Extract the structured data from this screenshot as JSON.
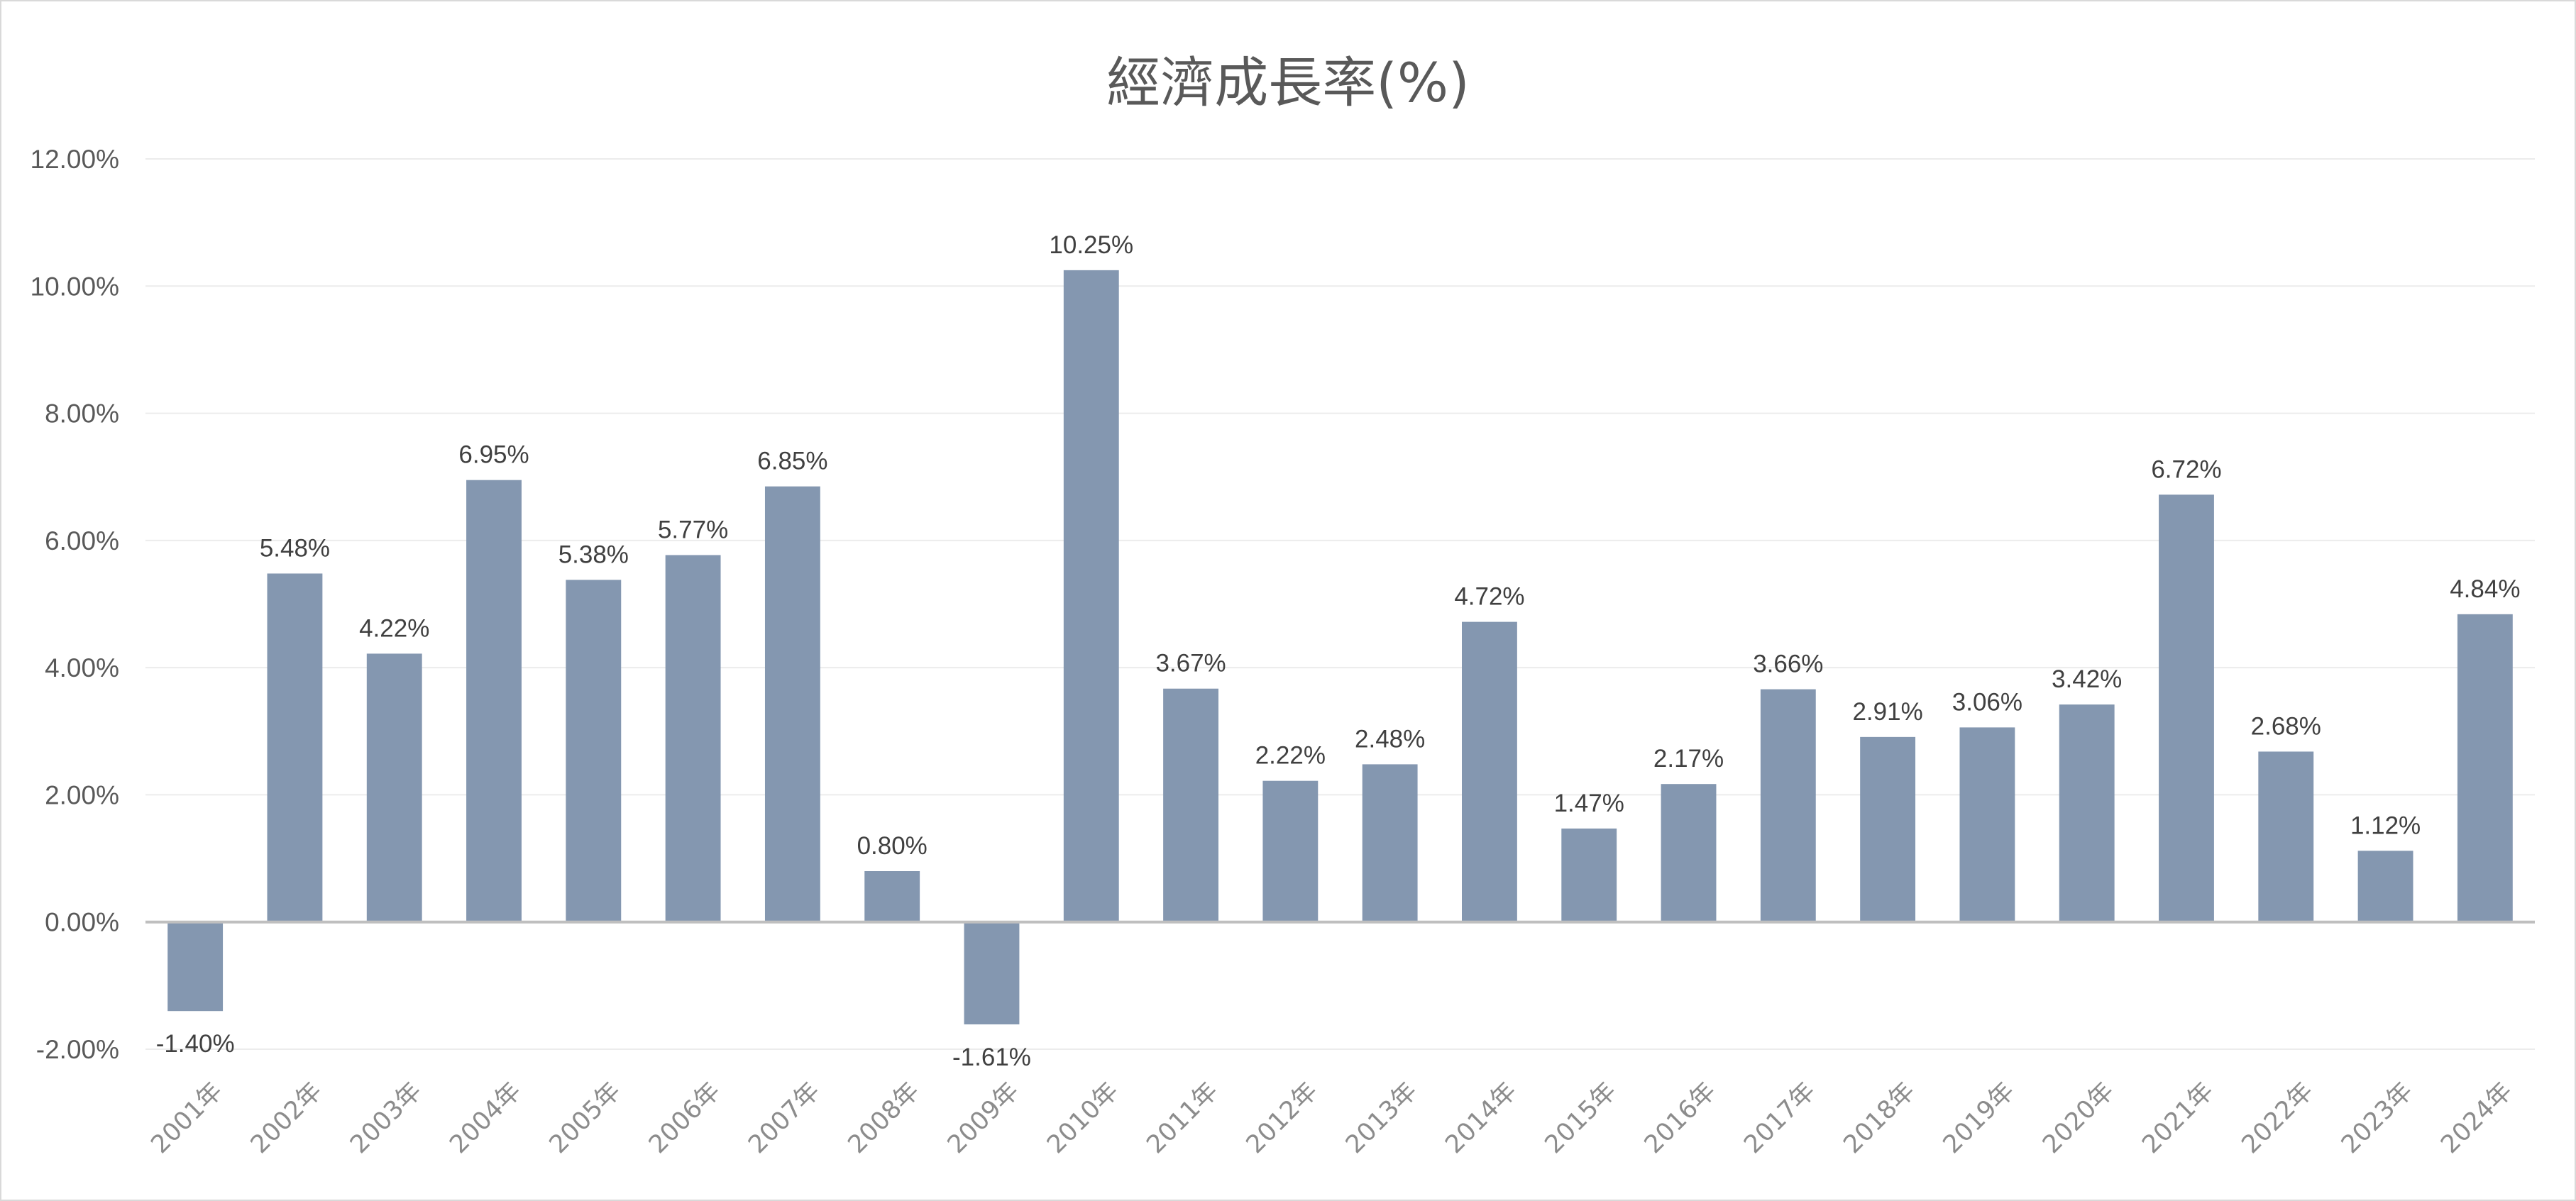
{
  "chart_data": {
    "type": "bar",
    "title": "經濟成長率(%)",
    "categories": [
      "2001年",
      "2002年",
      "2003年",
      "2004年",
      "2005年",
      "2006年",
      "2007年",
      "2008年",
      "2009年",
      "2010年",
      "2011年",
      "2012年",
      "2013年",
      "2014年",
      "2015年",
      "2016年",
      "2017年",
      "2018年",
      "2019年",
      "2020年",
      "2021年",
      "2022年",
      "2023年",
      "2024年"
    ],
    "values": [
      -1.4,
      5.48,
      4.22,
      6.95,
      5.38,
      5.77,
      6.85,
      0.8,
      -1.61,
      10.25,
      3.67,
      2.22,
      2.48,
      4.72,
      1.47,
      2.17,
      3.66,
      2.91,
      3.06,
      3.42,
      6.72,
      2.68,
      1.12,
      4.84
    ],
    "data_labels": [
      "-1.40%",
      "5.48%",
      "4.22%",
      "6.95%",
      "5.38%",
      "5.77%",
      "6.85%",
      "0.80%",
      "-1.61%",
      "10.25%",
      "3.67%",
      "2.22%",
      "2.48%",
      "4.72%",
      "1.47%",
      "2.17%",
      "3.66%",
      "2.91%",
      "3.06%",
      "3.42%",
      "6.72%",
      "2.68%",
      "1.12%",
      "4.84%"
    ],
    "y_ticks": [
      "-2.00%",
      "0.00%",
      "2.00%",
      "4.00%",
      "6.00%",
      "8.00%",
      "10.00%",
      "12.00%"
    ],
    "y_tick_values": [
      -2,
      0,
      2,
      4,
      6,
      8,
      10,
      12
    ],
    "ylim": [
      -2,
      12
    ],
    "xlabel": "",
    "ylabel": "",
    "grid": true,
    "colors": {
      "bar": "#8497b0",
      "grid": "#ececec",
      "zero_line": "#bfbfbf"
    }
  }
}
